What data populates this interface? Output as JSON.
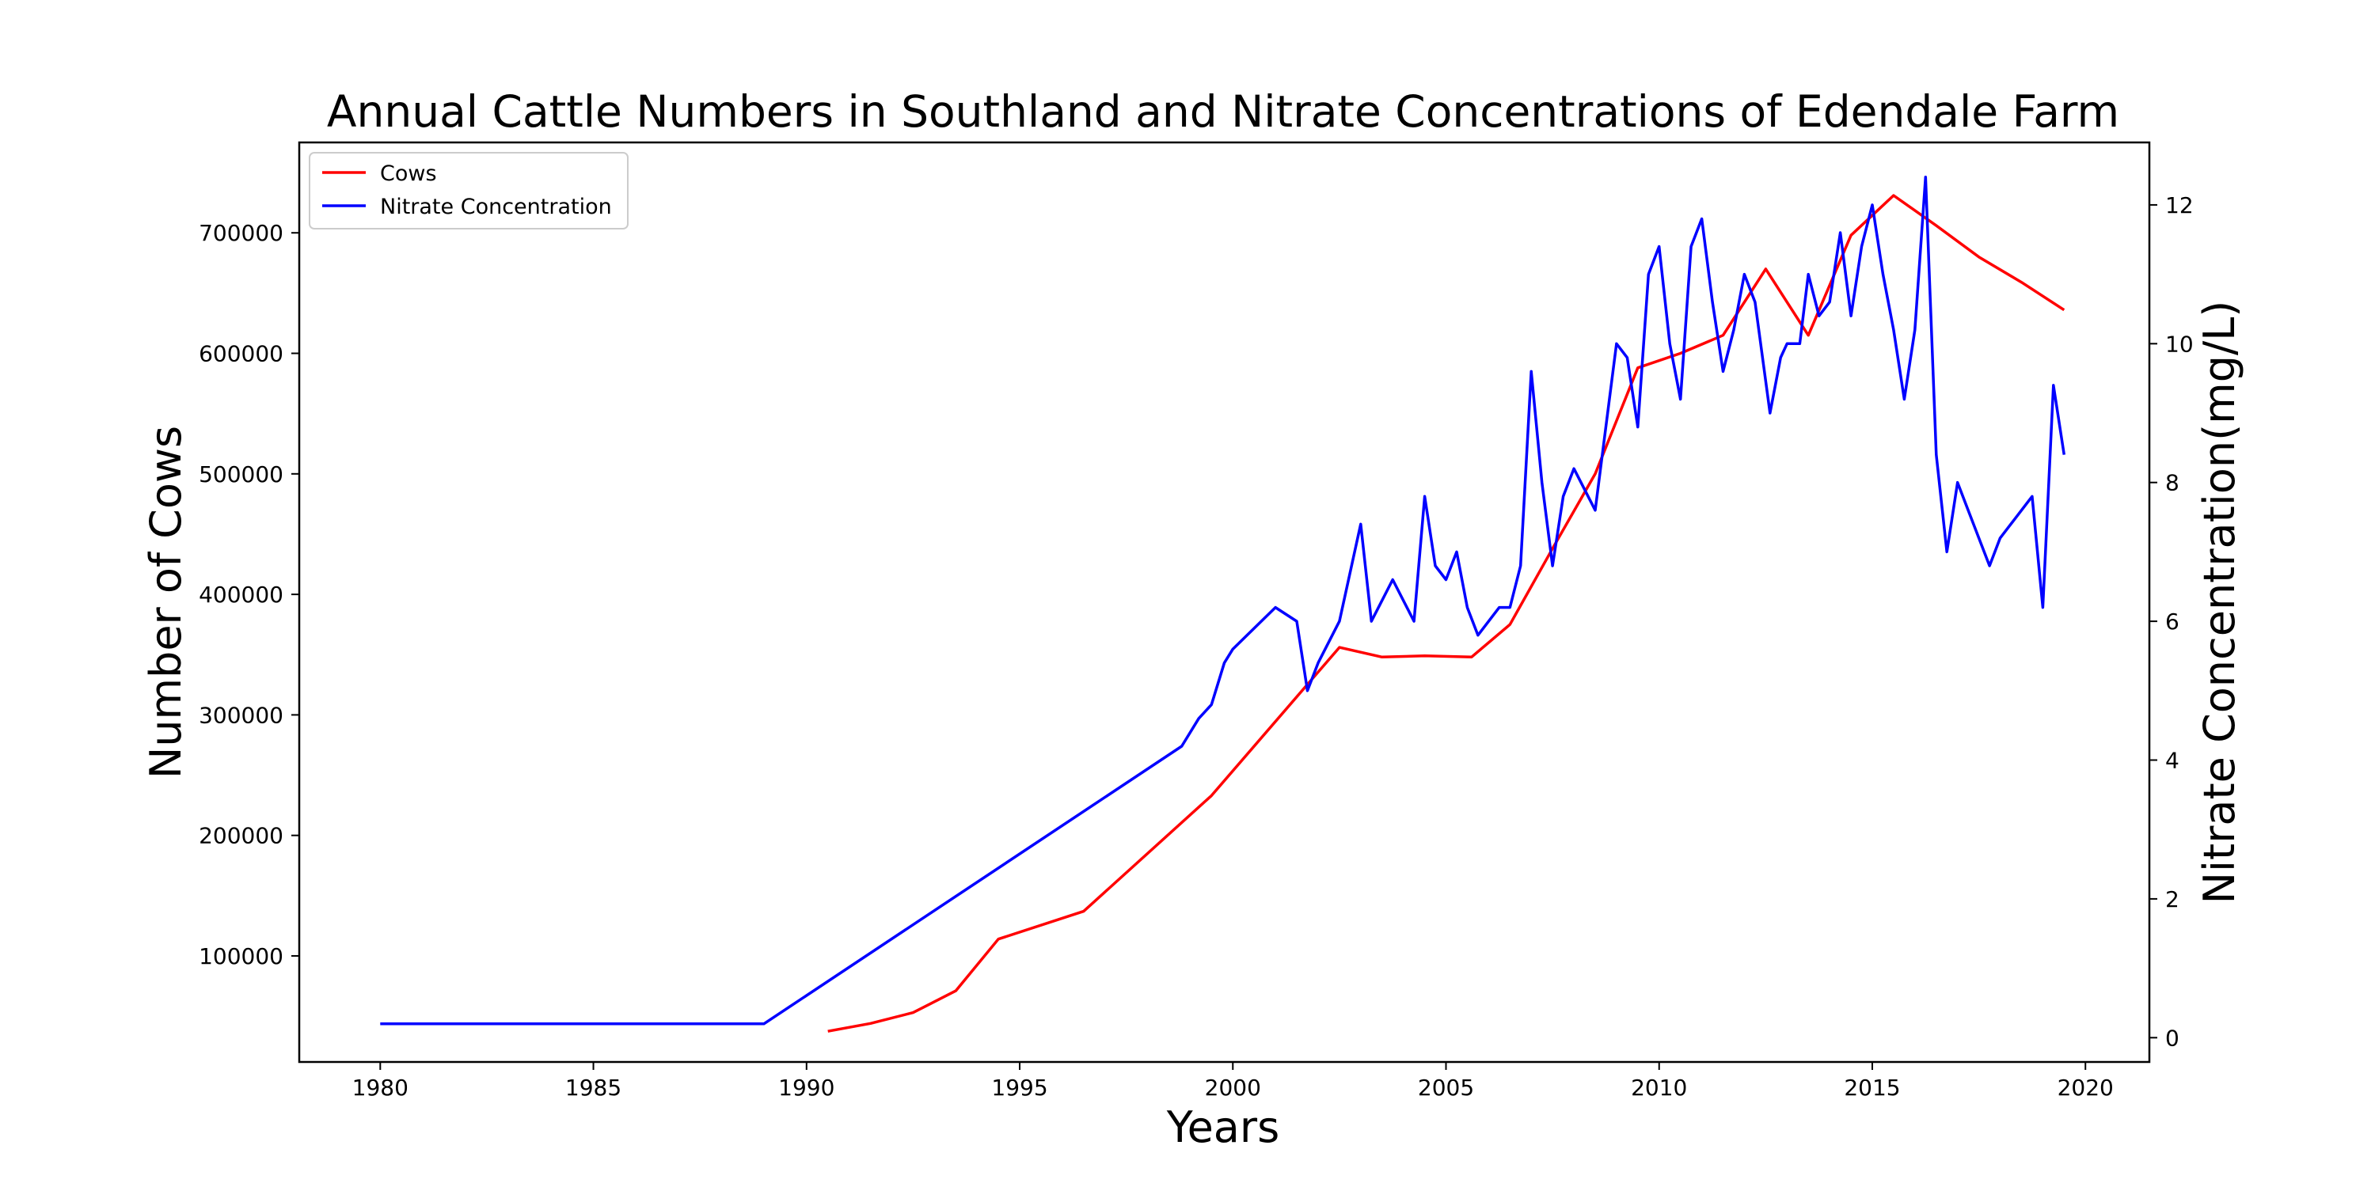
{
  "chart_data": {
    "type": "line",
    "title": "Annual Cattle Numbers in Southland and Nitrate Concentrations of Edendale Farm",
    "xlabel": "Years",
    "ylabel": "Number of Cows",
    "y2label": "Nitrate Concentration(mg/L)",
    "xlim": [
      1978.1,
      2021.5
    ],
    "ylim": [
      12000,
      775000
    ],
    "y2lim": [
      -0.35,
      12.9
    ],
    "x_ticks": [
      1980,
      1985,
      1990,
      1995,
      2000,
      2005,
      2010,
      2015,
      2020
    ],
    "y_ticks": [
      100000,
      200000,
      300000,
      400000,
      500000,
      600000,
      700000
    ],
    "y2_ticks": [
      0,
      2,
      4,
      6,
      8,
      10,
      12
    ],
    "grid": false,
    "legend_position": "top-left",
    "series": [
      {
        "name": "Cows",
        "axis": "left",
        "color": "#ff0000",
        "points": [
          [
            1990.5,
            37500
          ],
          [
            1991.5,
            44000
          ],
          [
            1992.5,
            53000
          ],
          [
            1993.5,
            71000
          ],
          [
            1994.5,
            114000
          ],
          [
            1996.5,
            137000
          ],
          [
            1999.5,
            233000
          ],
          [
            2002.5,
            356000
          ],
          [
            2003.5,
            348000
          ],
          [
            2004.5,
            349000
          ],
          [
            2005.6,
            348000
          ],
          [
            2006.5,
            375000
          ],
          [
            2007.5,
            438000
          ],
          [
            2008.5,
            500000
          ],
          [
            2009.5,
            588000
          ],
          [
            2010.5,
            600000
          ],
          [
            2011.5,
            615000
          ],
          [
            2012.5,
            670000
          ],
          [
            2013.5,
            615000
          ],
          [
            2014.5,
            698000
          ],
          [
            2015.5,
            731000
          ],
          [
            2016.5,
            706000
          ],
          [
            2017.5,
            680000
          ],
          [
            2018.5,
            659000
          ],
          [
            2019.5,
            636000
          ]
        ]
      },
      {
        "name": "Nitrate Concentration",
        "axis": "right",
        "color": "#0000ff",
        "points": [
          [
            1980,
            0.2
          ],
          [
            1989,
            0.2
          ],
          [
            1998.8,
            4.2
          ],
          [
            1999.2,
            4.6
          ],
          [
            1999.5,
            4.8
          ],
          [
            1999.8,
            5.4
          ],
          [
            2000.0,
            5.6
          ],
          [
            2001.0,
            6.2
          ],
          [
            2001.5,
            6.0
          ],
          [
            2001.75,
            5.0
          ],
          [
            2002.0,
            5.4
          ],
          [
            2002.5,
            6.0
          ],
          [
            2003.0,
            7.4
          ],
          [
            2003.25,
            6.0
          ],
          [
            2003.75,
            6.6
          ],
          [
            2004.25,
            6.0
          ],
          [
            2004.5,
            7.8
          ],
          [
            2004.75,
            6.8
          ],
          [
            2005.0,
            6.6
          ],
          [
            2005.25,
            7.0
          ],
          [
            2005.5,
            6.2
          ],
          [
            2005.75,
            5.8
          ],
          [
            2006.0,
            6.0
          ],
          [
            2006.25,
            6.2
          ],
          [
            2006.5,
            6.2
          ],
          [
            2006.75,
            6.8
          ],
          [
            2007.0,
            9.6
          ],
          [
            2007.25,
            8.0
          ],
          [
            2007.5,
            6.8
          ],
          [
            2007.75,
            7.8
          ],
          [
            2008.0,
            8.2
          ],
          [
            2008.5,
            7.6
          ],
          [
            2009.0,
            10.0
          ],
          [
            2009.25,
            9.8
          ],
          [
            2009.5,
            8.8
          ],
          [
            2009.75,
            11.0
          ],
          [
            2010.0,
            11.4
          ],
          [
            2010.25,
            10.0
          ],
          [
            2010.5,
            9.2
          ],
          [
            2010.75,
            11.4
          ],
          [
            2011.0,
            11.8
          ],
          [
            2011.25,
            10.6
          ],
          [
            2011.5,
            9.6
          ],
          [
            2011.75,
            10.2
          ],
          [
            2012.0,
            11.0
          ],
          [
            2012.25,
            10.6
          ],
          [
            2012.6,
            9.0
          ],
          [
            2012.85,
            9.8
          ],
          [
            2013.0,
            10.0
          ],
          [
            2013.3,
            10.0
          ],
          [
            2013.5,
            11.0
          ],
          [
            2013.75,
            10.4
          ],
          [
            2014.0,
            10.6
          ],
          [
            2014.25,
            11.6
          ],
          [
            2014.5,
            10.4
          ],
          [
            2014.75,
            11.4
          ],
          [
            2015.0,
            12.0
          ],
          [
            2015.25,
            11.0
          ],
          [
            2015.5,
            10.2
          ],
          [
            2015.75,
            9.2
          ],
          [
            2016.0,
            10.2
          ],
          [
            2016.25,
            12.4
          ],
          [
            2016.5,
            8.4
          ],
          [
            2016.75,
            7.0
          ],
          [
            2017.0,
            8.0
          ],
          [
            2017.25,
            7.6
          ],
          [
            2017.75,
            6.8
          ],
          [
            2018.0,
            7.2
          ],
          [
            2018.75,
            7.8
          ],
          [
            2019.0,
            6.2
          ],
          [
            2019.25,
            9.4
          ],
          [
            2019.5,
            8.4
          ]
        ]
      }
    ]
  }
}
